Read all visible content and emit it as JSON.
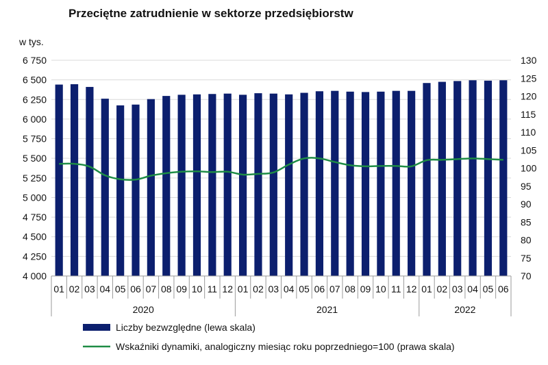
{
  "chart_data": {
    "type": "bar",
    "title": "Przeciętne zatrudnienie w sektorze przedsiębiorstw",
    "ylabel": "w tys.",
    "categories": [
      "01",
      "02",
      "03",
      "04",
      "05",
      "06",
      "07",
      "08",
      "09",
      "10",
      "11",
      "12",
      "01",
      "02",
      "03",
      "04",
      "05",
      "06",
      "07",
      "08",
      "09",
      "10",
      "11",
      "12",
      "01",
      "02",
      "03",
      "04",
      "05",
      "06"
    ],
    "year_groups": [
      {
        "label": "2020",
        "count": 12
      },
      {
        "label": "2021",
        "count": 12
      },
      {
        "label": "2022",
        "count": 6
      }
    ],
    "ylim_left": [
      4000,
      6750
    ],
    "ylim_right": [
      70,
      130
    ],
    "left_ticks": [
      "4 000",
      "4 250",
      "4 500",
      "4 750",
      "5 000",
      "5 250",
      "5 500",
      "5 750",
      "6 000",
      "6 250",
      "6 500",
      "6 750"
    ],
    "right_ticks": [
      "70",
      "75",
      "80",
      "85",
      "90",
      "95",
      "100",
      "105",
      "110",
      "115",
      "120",
      "125",
      "130"
    ],
    "series": [
      {
        "name": "Liczby bezwzględne (lewa skala)",
        "type": "bar",
        "axis": "left",
        "color": "#0c1f6e",
        "values": [
          6440,
          6445,
          6410,
          6260,
          6175,
          6185,
          6255,
          6295,
          6310,
          6315,
          6320,
          6325,
          6310,
          6330,
          6325,
          6315,
          6335,
          6355,
          6360,
          6350,
          6345,
          6350,
          6360,
          6360,
          6460,
          6475,
          6485,
          6495,
          6490,
          6495
        ]
      },
      {
        "name": "Wskaźniki dynamiki, analogiczny miesiąc roku poprzedniego=100 (prawa skala)",
        "type": "line",
        "axis": "right",
        "color": "#1e8c45",
        "values": [
          101.2,
          101.2,
          100.4,
          98.0,
          96.9,
          96.8,
          97.9,
          98.6,
          99.0,
          99.1,
          98.9,
          99.0,
          98.2,
          98.4,
          98.8,
          101.0,
          102.7,
          102.7,
          101.7,
          100.8,
          100.5,
          100.6,
          100.6,
          100.5,
          102.2,
          102.3,
          102.5,
          102.7,
          102.5,
          102.3
        ]
      }
    ],
    "grid": true,
    "legend": "bottom"
  }
}
